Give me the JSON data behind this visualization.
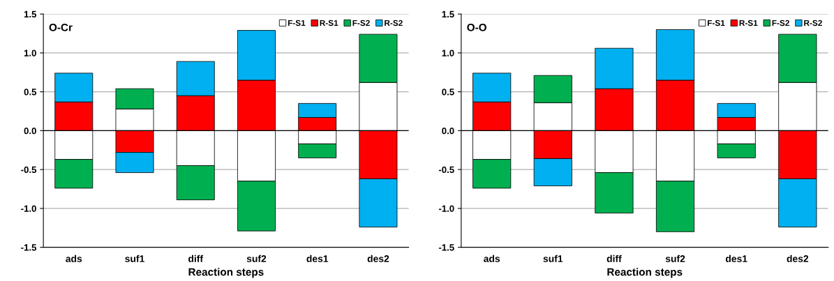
{
  "chart_data": [
    {
      "type": "bar",
      "title": "O-Cr",
      "xlabel": "Reaction steps",
      "stacked": true,
      "grid": "y",
      "legend": "top right",
      "categories": [
        "ads",
        "suf1",
        "diff",
        "suf2",
        "des1",
        "des2"
      ],
      "series": [
        {
          "name": "F-S1",
          "color": "#ffffff",
          "values": [
            -0.37,
            0.28,
            -0.45,
            -0.65,
            -0.17,
            0.62
          ]
        },
        {
          "name": "R-S1",
          "color": "#ff0000",
          "values": [
            0.37,
            -0.28,
            0.45,
            0.65,
            0.17,
            -0.62
          ]
        },
        {
          "name": "F-S2",
          "color": "#00b050",
          "values": [
            -0.37,
            0.26,
            -0.44,
            -0.64,
            -0.18,
            0.62
          ]
        },
        {
          "name": "R-S2",
          "color": "#00b0f0",
          "values": [
            0.37,
            -0.26,
            0.44,
            0.64,
            0.18,
            -0.62
          ]
        }
      ],
      "ylim": [
        -1.5,
        1.5
      ],
      "yticks": [
        -1.5,
        {
          "value": -1.0,
          "label": "-1.0"
        },
        -0.5,
        {
          "value": 0.0,
          "label": "0.0"
        },
        0.5,
        {
          "value": 1.0,
          "label": "1.0"
        },
        1.5
      ],
      "ref_lines": [
        {
          "axis": "y",
          "value": 0,
          "color": "#000000"
        }
      ]
    },
    {
      "type": "bar",
      "title": "O-O",
      "xlabel": "Reaction steps",
      "stacked": true,
      "grid": "y",
      "legend": "top right",
      "categories": [
        "ads",
        "suf1",
        "diff",
        "suf2",
        "des1",
        "des2"
      ],
      "series": [
        {
          "name": "F-S1",
          "color": "#ffffff",
          "values": [
            -0.37,
            0.36,
            -0.54,
            -0.65,
            -0.17,
            0.62
          ]
        },
        {
          "name": "R-S1",
          "color": "#ff0000",
          "values": [
            0.37,
            -0.36,
            0.54,
            0.65,
            0.17,
            -0.62
          ]
        },
        {
          "name": "F-S2",
          "color": "#00b050",
          "values": [
            -0.37,
            0.35,
            -0.52,
            -0.65,
            -0.18,
            0.62
          ]
        },
        {
          "name": "R-S2",
          "color": "#00b0f0",
          "values": [
            0.37,
            -0.35,
            0.52,
            0.65,
            0.18,
            -0.62
          ]
        }
      ],
      "ylim": [
        -1.5,
        1.5
      ],
      "yticks": [
        -1.5,
        {
          "value": -1.0,
          "label": "-1.0"
        },
        -0.5,
        {
          "value": 0.0,
          "label": "0.0"
        },
        0.5,
        {
          "value": 1.0,
          "label": "1.0"
        },
        1.5
      ],
      "ref_lines": [
        {
          "axis": "y",
          "value": 0,
          "color": "#000000"
        }
      ]
    }
  ]
}
